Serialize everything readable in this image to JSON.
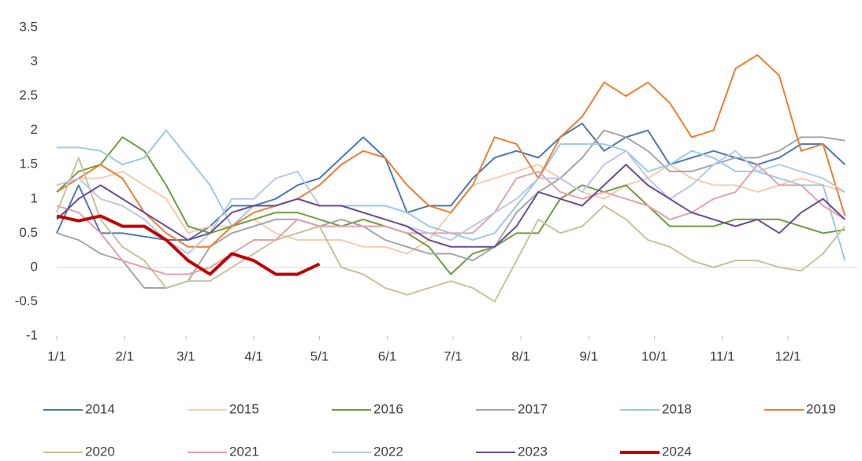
{
  "chart_data": {
    "type": "line",
    "x": [
      0,
      10,
      20,
      30,
      40,
      50,
      60,
      70,
      80,
      90,
      100,
      110,
      120,
      130,
      140,
      150,
      160,
      170,
      180,
      190,
      200,
      210,
      220,
      230,
      240,
      250,
      260,
      270,
      280,
      290,
      300,
      310,
      320,
      330,
      340,
      350,
      360
    ],
    "xlim": [
      0,
      366
    ],
    "xticks": [
      {
        "value": 0,
        "label": "1/1"
      },
      {
        "value": 31,
        "label": "2/1"
      },
      {
        "value": 59,
        "label": "3/1"
      },
      {
        "value": 90,
        "label": "4/1"
      },
      {
        "value": 120,
        "label": "5/1"
      },
      {
        "value": 151,
        "label": "6/1"
      },
      {
        "value": 181,
        "label": "7/1"
      },
      {
        "value": 212,
        "label": "8/1"
      },
      {
        "value": 243,
        "label": "9/1"
      },
      {
        "value": 273,
        "label": "10/1"
      },
      {
        "value": 304,
        "label": "11/1"
      },
      {
        "value": 334,
        "label": "12/1"
      }
    ],
    "ylim": [
      -1,
      3.5
    ],
    "yticks": [
      3.5,
      3,
      2.5,
      2,
      1.5,
      1,
      0.5,
      0,
      -0.5,
      -1
    ],
    "grid": false,
    "legend": "bottom",
    "series": [
      {
        "name": "2014",
        "color": "#4a78b8",
        "width": 2,
        "values": [
          0.5,
          1.2,
          0.5,
          0.5,
          0.45,
          0.4,
          0.4,
          0.6,
          0.9,
          0.9,
          1.0,
          1.2,
          1.3,
          1.6,
          1.9,
          1.6,
          0.8,
          0.9,
          0.9,
          1.3,
          1.6,
          1.7,
          1.6,
          1.9,
          2.1,
          1.7,
          1.9,
          2.0,
          1.5,
          1.6,
          1.7,
          1.6,
          1.5,
          1.6,
          1.8,
          1.8,
          1.5
        ]
      },
      {
        "name": "2015",
        "color": "#f8cbad",
        "width": 2,
        "values": [
          1.1,
          1.3,
          1.3,
          1.4,
          1.2,
          1.0,
          0.5,
          0.6,
          0.6,
          0.7,
          0.5,
          0.4,
          0.4,
          0.4,
          0.3,
          0.3,
          0.2,
          0.4,
          0.8,
          1.2,
          1.3,
          1.4,
          1.5,
          1.3,
          1.1,
          1.0,
          1.2,
          1.3,
          1.5,
          1.3,
          1.2,
          1.2,
          1.1,
          1.2,
          1.3,
          1.2,
          1.1
        ]
      },
      {
        "name": "2016",
        "color": "#6e9d3f",
        "width": 2,
        "values": [
          1.1,
          1.4,
          1.5,
          1.9,
          1.7,
          1.2,
          0.6,
          0.5,
          0.6,
          0.7,
          0.8,
          0.8,
          0.7,
          0.6,
          0.7,
          0.6,
          0.5,
          0.3,
          -0.1,
          0.2,
          0.3,
          0.5,
          0.5,
          1.0,
          1.2,
          1.1,
          1.2,
          0.9,
          0.6,
          0.6,
          0.6,
          0.7,
          0.7,
          0.7,
          0.6,
          0.5,
          0.55
        ]
      },
      {
        "name": "2017",
        "color": "#a6a6a6",
        "width": 2,
        "values": [
          0.5,
          0.4,
          0.2,
          0.1,
          -0.3,
          -0.3,
          -0.2,
          0.3,
          0.5,
          0.6,
          0.7,
          0.7,
          0.6,
          0.7,
          0.6,
          0.4,
          0.3,
          0.2,
          0.2,
          0.1,
          0.3,
          0.8,
          1.1,
          1.3,
          1.6,
          2.0,
          1.9,
          1.7,
          1.4,
          1.4,
          1.5,
          1.6,
          1.6,
          1.7,
          1.9,
          1.9,
          1.85
        ]
      },
      {
        "name": "2018",
        "color": "#9dc9e3",
        "width": 2,
        "values": [
          1.75,
          1.75,
          1.7,
          1.5,
          1.6,
          2.0,
          1.6,
          1.2,
          0.6,
          0.9,
          0.9,
          1.0,
          0.9,
          0.9,
          0.9,
          0.9,
          0.8,
          0.6,
          0.5,
          0.4,
          0.5,
          0.9,
          1.3,
          1.8,
          1.8,
          1.8,
          1.7,
          1.4,
          1.5,
          1.7,
          1.6,
          1.4,
          1.4,
          1.3,
          1.2,
          1.2,
          0.1
        ]
      },
      {
        "name": "2019",
        "color": "#ed7d31",
        "width": 2,
        "values": [
          1.1,
          1.3,
          1.5,
          1.3,
          0.8,
          0.5,
          0.3,
          0.3,
          0.6,
          0.8,
          0.9,
          1.0,
          1.2,
          1.5,
          1.7,
          1.6,
          1.2,
          0.9,
          0.8,
          1.2,
          1.9,
          1.8,
          1.3,
          1.9,
          2.2,
          2.7,
          2.5,
          2.7,
          2.4,
          1.9,
          2.0,
          2.9,
          3.1,
          2.8,
          1.7,
          1.8,
          0.75
        ]
      },
      {
        "name": "2020",
        "color": "#c9c29a",
        "width": 2,
        "values": [
          0.8,
          1.6,
          0.7,
          0.3,
          0.1,
          -0.3,
          -0.2,
          -0.2,
          0.0,
          0.2,
          0.4,
          0.5,
          0.6,
          0.0,
          -0.1,
          -0.3,
          -0.4,
          -0.3,
          -0.2,
          -0.3,
          -0.5,
          0.1,
          0.7,
          0.5,
          0.6,
          0.9,
          0.7,
          0.4,
          0.3,
          0.1,
          0.0,
          0.1,
          0.1,
          0.0,
          -0.05,
          0.2,
          0.6
        ]
      },
      {
        "name": "2021",
        "color": "#e3a1a8",
        "width": 2,
        "values": [
          0.9,
          0.8,
          0.5,
          0.1,
          0.0,
          -0.1,
          -0.1,
          0.0,
          0.2,
          0.4,
          0.4,
          0.7,
          0.6,
          0.6,
          0.6,
          0.6,
          0.5,
          0.5,
          0.5,
          0.5,
          0.8,
          1.3,
          1.4,
          1.1,
          1.0,
          1.1,
          1.0,
          0.9,
          0.7,
          0.8,
          1.0,
          1.1,
          1.5,
          1.2,
          1.2,
          0.9,
          0.7
        ]
      },
      {
        "name": "2022",
        "color": "#b8c9e8",
        "width": 2,
        "values": [
          1.2,
          1.3,
          1.0,
          0.9,
          0.7,
          0.4,
          0.2,
          0.5,
          1.0,
          1.0,
          1.3,
          1.4,
          0.9,
          0.9,
          0.8,
          0.7,
          0.6,
          0.5,
          0.4,
          0.6,
          0.8,
          1.0,
          1.3,
          1.3,
          1.1,
          1.5,
          1.7,
          1.3,
          1.0,
          1.2,
          1.5,
          1.7,
          1.4,
          1.5,
          1.4,
          1.3,
          1.1
        ]
      },
      {
        "name": "2023",
        "color": "#6b4a94",
        "width": 2,
        "values": [
          0.7,
          1.0,
          1.2,
          1.0,
          0.8,
          0.6,
          0.4,
          0.5,
          0.8,
          0.9,
          0.9,
          1.0,
          0.9,
          0.9,
          0.8,
          0.7,
          0.6,
          0.4,
          0.3,
          0.3,
          0.3,
          0.6,
          1.1,
          1.0,
          0.9,
          1.2,
          1.5,
          1.2,
          1.0,
          0.8,
          0.7,
          0.6,
          0.7,
          0.5,
          0.8,
          1.0,
          0.7
        ]
      },
      {
        "name": "2024",
        "color": "#c00000",
        "width": 4,
        "values": [
          0.75,
          0.68,
          0.75,
          0.6,
          0.6,
          0.4,
          0.1,
          -0.1,
          0.2,
          0.1,
          -0.1,
          -0.1,
          0.05,
          null,
          null,
          null,
          null,
          null,
          null,
          null,
          null,
          null,
          null,
          null,
          null,
          null,
          null,
          null,
          null,
          null,
          null,
          null,
          null,
          null,
          null,
          null,
          null
        ]
      }
    ]
  }
}
